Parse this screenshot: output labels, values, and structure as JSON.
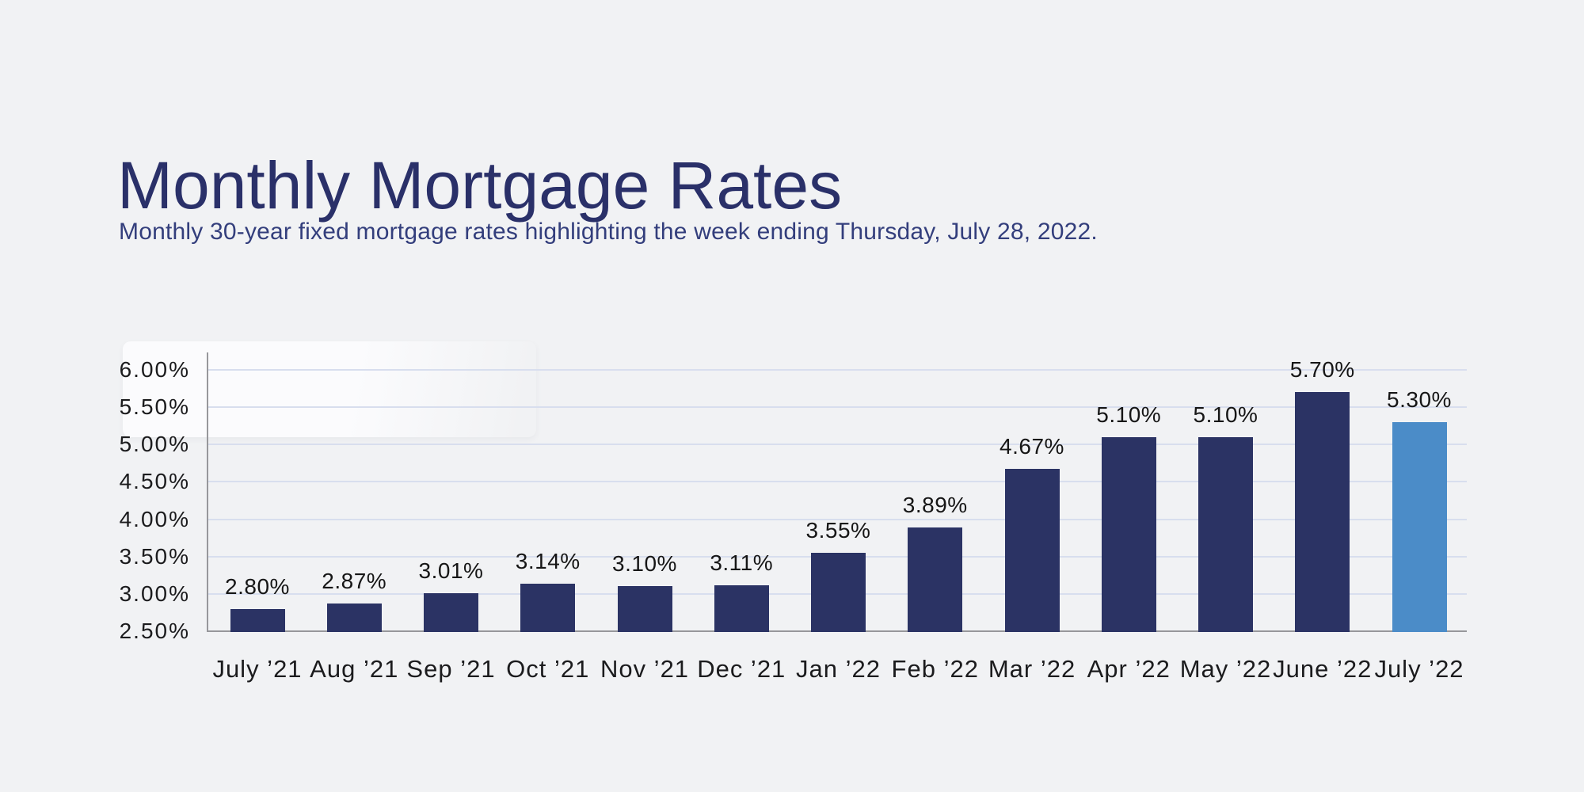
{
  "page": {
    "background": "#f1f2f4"
  },
  "header": {
    "title": "Monthly Mortgage Rates",
    "subtitle": "Monthly 30-year fixed mortgage rates highlighting the week ending Thursday, July 28, 2022.",
    "title_color": "#2a3069",
    "subtitle_color": "#333e7c"
  },
  "chart_data": {
    "type": "bar",
    "title": "Monthly Mortgage Rates",
    "subtitle": "Monthly 30-year fixed mortgage rates highlighting the week ending Thursday, July 28, 2022.",
    "categories": [
      "July ’21",
      "Aug ’21",
      "Sep ’21",
      "Oct ’21",
      "Nov ’21",
      "Dec ’21",
      "Jan ’22",
      "Feb ’22",
      "Mar ’22",
      "Apr ’22",
      "May ’22",
      "June ’22",
      "July ’22"
    ],
    "values": [
      2.8,
      2.87,
      3.01,
      3.14,
      3.1,
      3.11,
      3.55,
      3.89,
      4.67,
      5.1,
      5.1,
      5.7,
      5.3
    ],
    "value_labels": [
      "2.80%",
      "2.87%",
      "3.01%",
      "3.14%",
      "3.10%",
      "3.11%",
      "3.55%",
      "3.89%",
      "4.67%",
      "5.10%",
      "5.10%",
      "5.70%",
      "5.30%"
    ],
    "highlight_index": 12,
    "ylim": [
      2.5,
      6.0
    ],
    "ytick_step": 0.5,
    "ytick_labels": [
      "2.50%",
      "3.00%",
      "3.50%",
      "4.00%",
      "4.50%",
      "5.00%",
      "5.50%",
      "6.00%"
    ],
    "xlabel": "",
    "ylabel": "",
    "grid": true,
    "legend": "none",
    "colors": {
      "bar": "#2b3364",
      "highlight_bar": "#4b8cc8",
      "gridline": "#d8deee",
      "axis_line": "#97979b",
      "tick_label": "#1b1b1d",
      "value_label": "#161616"
    }
  }
}
